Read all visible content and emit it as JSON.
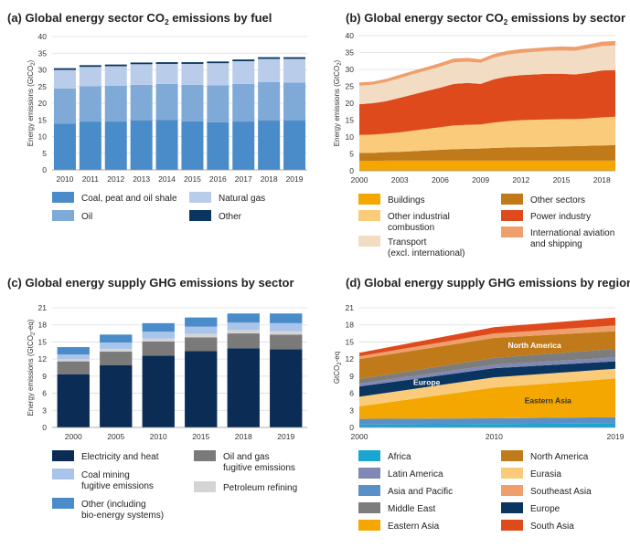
{
  "colors": {
    "coal": "#4a8bc9",
    "oil": "#7fa9d6",
    "gas": "#b9cdea",
    "other_fuel": "#0a3560",
    "buildings": "#f3a700",
    "other_sectors": "#c07a19",
    "other_industrial": "#f9cb7b",
    "power": "#de4a1b",
    "transport": "#f2dcc4",
    "aviation": "#ee9f6c",
    "electricity": "#0a2c55",
    "oilgas": "#7a7a7a",
    "coalmining": "#a9c4ea",
    "petroleum": "#d4d4d4",
    "other_bio": "#4a8bc9",
    "africa": "#19a6d0",
    "latam": "#8088b4",
    "asia_pacific": "#5a90c8",
    "middle_east": "#7d7d7d",
    "eastern_asia": "#f3a700",
    "north_america": "#c07a19",
    "eurasia": "#f9cb7b",
    "southeast_asia": "#ee9f6c",
    "europe": "#0a3560",
    "south_asia": "#de4a1b"
  },
  "chart_data": [
    {
      "id": "a",
      "type": "bar",
      "stacked": true,
      "title_main": "(a) Global energy sector CO",
      "title_sub": "2",
      "title_end": " emissions by fuel",
      "ylabel_main": "Energy emissions (GtCO",
      "ylabel_sub": "2",
      "ylabel_end": ")",
      "categories": [
        "2010",
        "2011",
        "2012",
        "2013",
        "2014",
        "2015",
        "2016",
        "2017",
        "2018",
        "2019"
      ],
      "ylim": [
        0,
        40
      ],
      "yticks": [
        "0",
        "5",
        "10",
        "15",
        "20",
        "25",
        "30",
        "35",
        "40"
      ],
      "grid": true,
      "series": [
        {
          "name": "Coal, peat and oil shale",
          "values": [
            13.9,
            14.5,
            14.5,
            14.8,
            15.0,
            14.6,
            14.3,
            14.5,
            14.8,
            14.8
          ]
        },
        {
          "name": "Oil",
          "values": [
            10.5,
            10.6,
            10.7,
            10.7,
            10.8,
            10.9,
            11.1,
            11.3,
            11.5,
            11.4
          ]
        },
        {
          "name": "Natural gas",
          "values": [
            5.6,
            5.8,
            5.9,
            6.2,
            6.0,
            6.3,
            6.6,
            6.8,
            7.0,
            7.1
          ]
        },
        {
          "name": "Other",
          "values": [
            0.5,
            0.5,
            0.5,
            0.5,
            0.5,
            0.5,
            0.5,
            0.5,
            0.5,
            0.5
          ]
        }
      ],
      "legend": [
        {
          "label": "Coal, peat and oil shale",
          "key": "coal"
        },
        {
          "label": "Natural gas",
          "key": "gas"
        },
        {
          "label": "Oil",
          "key": "oil"
        },
        {
          "label": "Other",
          "key": "other_fuel"
        }
      ]
    },
    {
      "id": "b",
      "type": "area",
      "stacked": true,
      "title_main": "(b) Global energy sector CO",
      "title_sub": "2",
      "title_end": " emissions by sector",
      "ylabel_main": "Energy emissions (GtCO",
      "ylabel_sub": "2",
      "ylabel_end": ")",
      "x": [
        2000,
        2001,
        2002,
        2003,
        2004,
        2005,
        2006,
        2007,
        2008,
        2009,
        2010,
        2011,
        2012,
        2013,
        2014,
        2015,
        2016,
        2017,
        2018,
        2019
      ],
      "xlim": [
        2000,
        2019
      ],
      "xticks": [
        "2000",
        "2003",
        "2006",
        "2009",
        "2012",
        "2015",
        "2018"
      ],
      "ylim": [
        0,
        40
      ],
      "yticks": [
        "0",
        "5",
        "10",
        "15",
        "20",
        "25",
        "30",
        "35",
        "40"
      ],
      "grid": true,
      "series": [
        {
          "name": "Buildings",
          "values": [
            2.9,
            2.9,
            3.0,
            3.0,
            3.0,
            3.0,
            3.0,
            3.0,
            3.0,
            3.0,
            3.0,
            3.0,
            3.0,
            3.0,
            3.0,
            3.0,
            3.0,
            3.0,
            3.0,
            3.0
          ]
        },
        {
          "name": "Other sectors",
          "values": [
            2.4,
            2.4,
            2.5,
            2.6,
            2.8,
            3.0,
            3.2,
            3.4,
            3.5,
            3.6,
            3.8,
            3.9,
            4.0,
            4.0,
            4.1,
            4.2,
            4.3,
            4.4,
            4.5,
            4.6
          ]
        },
        {
          "name": "Other industrial combustion",
          "values": [
            5.3,
            5.4,
            5.5,
            5.8,
            6.1,
            6.4,
            6.7,
            7.0,
            7.1,
            7.1,
            7.5,
            7.8,
            8.0,
            8.1,
            8.1,
            8.1,
            8.0,
            8.1,
            8.3,
            8.4
          ]
        },
        {
          "name": "Power industry",
          "values": [
            9.1,
            9.3,
            9.6,
            10.2,
            10.7,
            11.2,
            11.7,
            12.3,
            12.4,
            12.0,
            12.8,
            13.2,
            13.3,
            13.4,
            13.5,
            13.4,
            13.2,
            13.5,
            13.9,
            13.8
          ]
        },
        {
          "name": "Transport (excl. international)",
          "values": [
            5.5,
            5.5,
            5.7,
            5.8,
            6.0,
            6.1,
            6.2,
            6.4,
            6.3,
            6.3,
            6.4,
            6.5,
            6.6,
            6.7,
            6.8,
            6.9,
            7.0,
            7.2,
            7.2,
            7.3
          ]
        },
        {
          "name": "International aviation and shipping",
          "values": [
            0.9,
            0.9,
            0.9,
            1.0,
            1.0,
            1.0,
            1.1,
            1.1,
            1.1,
            1.0,
            1.1,
            1.1,
            1.1,
            1.1,
            1.1,
            1.2,
            1.2,
            1.2,
            1.3,
            1.3
          ]
        }
      ],
      "legend": [
        {
          "label": "Buildings",
          "key": "buildings"
        },
        {
          "label": "Other sectors",
          "key": "other_sectors"
        },
        {
          "label": "Other industrial combustion",
          "key": "other_industrial"
        },
        {
          "label": "Power industry",
          "key": "power"
        },
        {
          "label": "Transport (excl. international)",
          "key": "transport"
        },
        {
          "label": "International aviation and shipping",
          "key": "aviation"
        }
      ]
    },
    {
      "id": "c",
      "type": "bar",
      "stacked": true,
      "title_main": "(c) Global energy supply GHG emissions by sector",
      "title_sub": "",
      "title_end": "",
      "ylabel_main": "Energy emissions (GtCO",
      "ylabel_sub": "2",
      "ylabel_end": "-eq)",
      "categories": [
        "2000",
        "2005",
        "2010",
        "2015",
        "2018",
        "2019"
      ],
      "ylim": [
        0,
        21
      ],
      "yticks": [
        "0",
        "3",
        "6",
        "9",
        "12",
        "15",
        "18",
        "21"
      ],
      "grid": true,
      "series": [
        {
          "name": "Electricity and heat",
          "values": [
            9.3,
            10.9,
            12.6,
            13.4,
            13.9,
            13.7
          ]
        },
        {
          "name": "Oil and gas fugitive emissions",
          "values": [
            2.3,
            2.4,
            2.5,
            2.4,
            2.6,
            2.6
          ]
        },
        {
          "name": "Petroleum refining",
          "values": [
            0.4,
            0.5,
            0.5,
            0.6,
            0.6,
            0.6
          ]
        },
        {
          "name": "Coal mining fugitive emissions",
          "values": [
            0.8,
            1.1,
            1.2,
            1.3,
            1.3,
            1.4
          ]
        },
        {
          "name": "Other (including bio-energy systems)",
          "values": [
            1.3,
            1.4,
            1.5,
            1.6,
            1.6,
            1.7
          ]
        }
      ],
      "legend": [
        {
          "label": "Electricity and heat",
          "key": "electricity"
        },
        {
          "label": "Oil and gas fugitive emissions",
          "key": "oilgas"
        },
        {
          "label": "Coal mining fugitive emissions",
          "key": "coalmining"
        },
        {
          "label": "Petroleum refining",
          "key": "petroleum"
        },
        {
          "label": "Other (including bio-energy systems)",
          "key": "other_bio"
        }
      ]
    },
    {
      "id": "d",
      "type": "area",
      "stacked": true,
      "title_main": "(d) Global energy supply GHG emissions by region",
      "title_sub": "",
      "title_end": "",
      "ylabel_main": "GtCO",
      "ylabel_sub": "2",
      "ylabel_end": "-eq",
      "x": [
        2000,
        2010,
        2019
      ],
      "xlim": [
        2000,
        2019
      ],
      "xticks": [
        "2000",
        "2010",
        "2019"
      ],
      "ylim": [
        0,
        21
      ],
      "yticks": [
        "0",
        "3",
        "6",
        "9",
        "12",
        "15",
        "18",
        "21"
      ],
      "grid": true,
      "series": [
        {
          "name": "Africa",
          "values": [
            0.5,
            0.6,
            0.7
          ]
        },
        {
          "name": "Asia and Pacific",
          "values": [
            1.0,
            1.0,
            1.1
          ]
        },
        {
          "name": "Eastern Asia",
          "values": [
            2.2,
            5.4,
            6.8
          ]
        },
        {
          "name": "Eurasia",
          "values": [
            1.7,
            1.8,
            1.7
          ]
        },
        {
          "name": "Europe",
          "values": [
            1.8,
            1.6,
            1.3
          ]
        },
        {
          "name": "Latin America",
          "values": [
            0.5,
            0.6,
            0.7
          ]
        },
        {
          "name": "Middle East",
          "values": [
            0.8,
            1.2,
            1.5
          ]
        },
        {
          "name": "North America",
          "values": [
            3.5,
            3.5,
            3.1
          ]
        },
        {
          "name": "Southeast Asia",
          "values": [
            0.5,
            0.8,
            1.0
          ]
        },
        {
          "name": "South Asia",
          "values": [
            0.6,
            1.1,
            1.4
          ]
        }
      ],
      "annotations": [
        {
          "text": "North America",
          "series": "North America",
          "x": 2013
        },
        {
          "text": "Europe",
          "series": "Europe",
          "x": 2005
        },
        {
          "text": "Eastern Asia",
          "series": "Eastern Asia",
          "x": 2014
        }
      ],
      "legend": [
        {
          "label": "Africa",
          "key": "africa"
        },
        {
          "label": "North America",
          "key": "north_america"
        },
        {
          "label": "Latin America",
          "key": "latam"
        },
        {
          "label": "Eurasia",
          "key": "eurasia"
        },
        {
          "label": "Asia and Pacific",
          "key": "asia_pacific"
        },
        {
          "label": "Southeast Asia",
          "key": "southeast_asia"
        },
        {
          "label": "Middle East",
          "key": "middle_east"
        },
        {
          "label": "Europe",
          "key": "europe"
        },
        {
          "label": "Eastern Asia",
          "key": "eastern_asia"
        },
        {
          "label": "South Asia",
          "key": "south_asia"
        }
      ]
    }
  ]
}
